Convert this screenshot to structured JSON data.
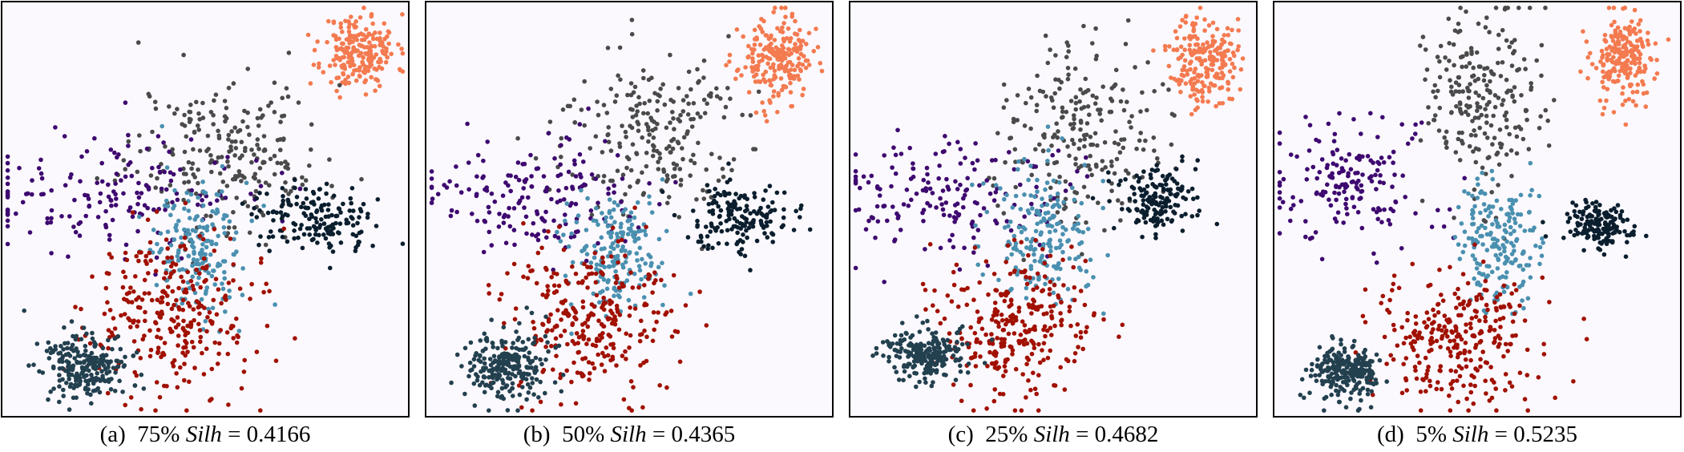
{
  "chart_data": [
    {
      "type": "scatter",
      "letter": "(a)",
      "percent": "75%",
      "metric": "Silh",
      "value": "0.4166",
      "seed": 11,
      "xlim": [
        0,
        1
      ],
      "ylim": [
        0,
        1
      ],
      "clusters": [
        {
          "color": "#f47a50",
          "center": [
            0.88,
            0.88
          ],
          "spread": [
            0.045,
            0.045
          ],
          "n": 220
        },
        {
          "color": "#4a4a4a",
          "center": [
            0.55,
            0.64
          ],
          "spread": [
            0.12,
            0.09
          ],
          "n": 230
        },
        {
          "color": "#3e0870",
          "center": [
            0.27,
            0.54
          ],
          "spread": [
            0.15,
            0.07
          ],
          "n": 170
        },
        {
          "color": "#0b1e2e",
          "center": [
            0.76,
            0.48
          ],
          "spread": [
            0.07,
            0.04
          ],
          "n": 160
        },
        {
          "color": "#4a90b0",
          "center": [
            0.49,
            0.4
          ],
          "spread": [
            0.06,
            0.08
          ],
          "n": 190
        },
        {
          "color": "#a11000",
          "center": [
            0.42,
            0.24
          ],
          "spread": [
            0.1,
            0.1
          ],
          "n": 290
        },
        {
          "color": "#23404f",
          "center": [
            0.21,
            0.12
          ],
          "spread": [
            0.05,
            0.04
          ],
          "n": 240
        }
      ]
    },
    {
      "type": "scatter",
      "letter": "(b)",
      "percent": "50%",
      "metric": "Silh",
      "value": "0.4365",
      "seed": 23,
      "xlim": [
        0,
        1
      ],
      "ylim": [
        0,
        1
      ],
      "clusters": [
        {
          "color": "#f47a50",
          "center": [
            0.86,
            0.86
          ],
          "spread": [
            0.045,
            0.05
          ],
          "n": 220
        },
        {
          "color": "#4a4a4a",
          "center": [
            0.55,
            0.68
          ],
          "spread": [
            0.11,
            0.1
          ],
          "n": 230
        },
        {
          "color": "#3e0870",
          "center": [
            0.25,
            0.52
          ],
          "spread": [
            0.14,
            0.07
          ],
          "n": 170
        },
        {
          "color": "#0b1e2e",
          "center": [
            0.77,
            0.48
          ],
          "spread": [
            0.06,
            0.04
          ],
          "n": 160
        },
        {
          "color": "#4a90b0",
          "center": [
            0.47,
            0.39
          ],
          "spread": [
            0.06,
            0.07
          ],
          "n": 190
        },
        {
          "color": "#a11000",
          "center": [
            0.41,
            0.23
          ],
          "spread": [
            0.1,
            0.1
          ],
          "n": 290
        },
        {
          "color": "#23404f",
          "center": [
            0.2,
            0.12
          ],
          "spread": [
            0.05,
            0.04
          ],
          "n": 240
        }
      ]
    },
    {
      "type": "scatter",
      "letter": "(c)",
      "percent": "25%",
      "metric": "Silh",
      "value": "0.4682",
      "seed": 37,
      "xlim": [
        0,
        1
      ],
      "ylim": [
        0,
        1
      ],
      "clusters": [
        {
          "color": "#f47a50",
          "center": [
            0.87,
            0.86
          ],
          "spread": [
            0.04,
            0.055
          ],
          "n": 220
        },
        {
          "color": "#4a4a4a",
          "center": [
            0.57,
            0.7
          ],
          "spread": [
            0.1,
            0.11
          ],
          "n": 230
        },
        {
          "color": "#3e0870",
          "center": [
            0.24,
            0.53
          ],
          "spread": [
            0.14,
            0.07
          ],
          "n": 170
        },
        {
          "color": "#0b1e2e",
          "center": [
            0.76,
            0.52
          ],
          "spread": [
            0.05,
            0.04
          ],
          "n": 160
        },
        {
          "color": "#4a90b0",
          "center": [
            0.47,
            0.43
          ],
          "spread": [
            0.06,
            0.08
          ],
          "n": 190
        },
        {
          "color": "#a11000",
          "center": [
            0.4,
            0.22
          ],
          "spread": [
            0.1,
            0.09
          ],
          "n": 290
        },
        {
          "color": "#23404f",
          "center": [
            0.18,
            0.15
          ],
          "spread": [
            0.05,
            0.03
          ],
          "n": 240
        }
      ]
    },
    {
      "type": "scatter",
      "letter": "(d)",
      "percent": "5%",
      "metric": "Silh",
      "value": "0.5235",
      "seed": 53,
      "xlim": [
        0,
        1
      ],
      "ylim": [
        0,
        1
      ],
      "clusters": [
        {
          "color": "#f47a50",
          "center": [
            0.86,
            0.86
          ],
          "spread": [
            0.04,
            0.055
          ],
          "n": 220
        },
        {
          "color": "#4a4a4a",
          "center": [
            0.52,
            0.76
          ],
          "spread": [
            0.08,
            0.11
          ],
          "n": 230
        },
        {
          "color": "#3e0870",
          "center": [
            0.19,
            0.57
          ],
          "spread": [
            0.1,
            0.08
          ],
          "n": 170
        },
        {
          "color": "#0b1e2e",
          "center": [
            0.8,
            0.46
          ],
          "spread": [
            0.04,
            0.03
          ],
          "n": 160
        },
        {
          "color": "#4a90b0",
          "center": [
            0.55,
            0.42
          ],
          "spread": [
            0.05,
            0.08
          ],
          "n": 190
        },
        {
          "color": "#a11000",
          "center": [
            0.46,
            0.18
          ],
          "spread": [
            0.1,
            0.08
          ],
          "n": 290
        },
        {
          "color": "#23404f",
          "center": [
            0.18,
            0.11
          ],
          "spread": [
            0.04,
            0.03
          ],
          "n": 240
        }
      ]
    }
  ]
}
